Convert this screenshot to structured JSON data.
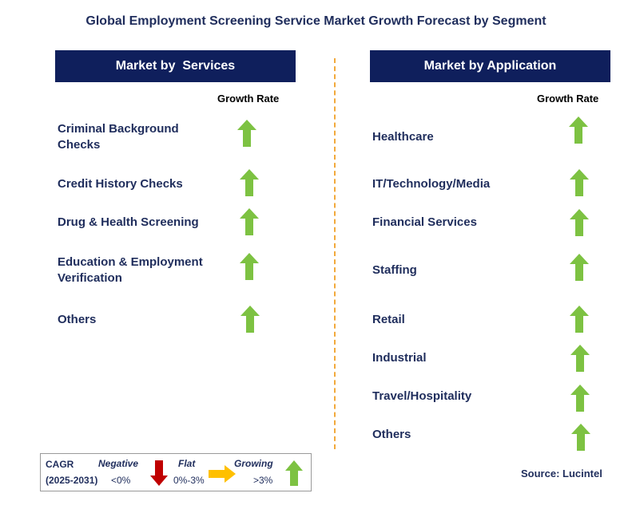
{
  "title": "Global Employment Screening Service Market Growth Forecast by Segment",
  "left": {
    "header": "Market by  Services",
    "growth_rate_label": "Growth Rate",
    "items": [
      {
        "label": "Criminal Background\nChecks",
        "trend": "growing"
      },
      {
        "label": "Credit History Checks",
        "trend": "growing"
      },
      {
        "label": "Drug & Health Screening",
        "trend": "growing"
      },
      {
        "label": "Education & Employment\nVerification",
        "trend": "growing"
      },
      {
        "label": "Others",
        "trend": "growing"
      }
    ]
  },
  "right": {
    "header": "Market by Application",
    "growth_rate_label": "Growth Rate",
    "items": [
      {
        "label": "Healthcare",
        "trend": "growing"
      },
      {
        "label": "IT/Technology/Media",
        "trend": "growing"
      },
      {
        "label": "Financial Services",
        "trend": "growing"
      },
      {
        "label": "Staffing",
        "trend": "growing"
      },
      {
        "label": "Retail",
        "trend": "growing"
      },
      {
        "label": "Industrial",
        "trend": "growing"
      },
      {
        "label": "Travel/Hospitality",
        "trend": "growing"
      },
      {
        "label": "Others",
        "trend": "growing"
      }
    ]
  },
  "legend": {
    "cagr": "CAGR",
    "period": "(2025-2031)",
    "negative_label": "Negative",
    "negative_range": "<0%",
    "flat_label": "Flat",
    "flat_range": "0%-3%",
    "growing_label": "Growing",
    "growing_range": ">3%"
  },
  "source": "Source: Lucintel",
  "colors": {
    "header_bg": "#0f1f5c",
    "text": "#1f2d5c",
    "growing": "#7dc242",
    "negative": "#c00000",
    "flat": "#ffc000",
    "divider": "#f2a93b"
  }
}
